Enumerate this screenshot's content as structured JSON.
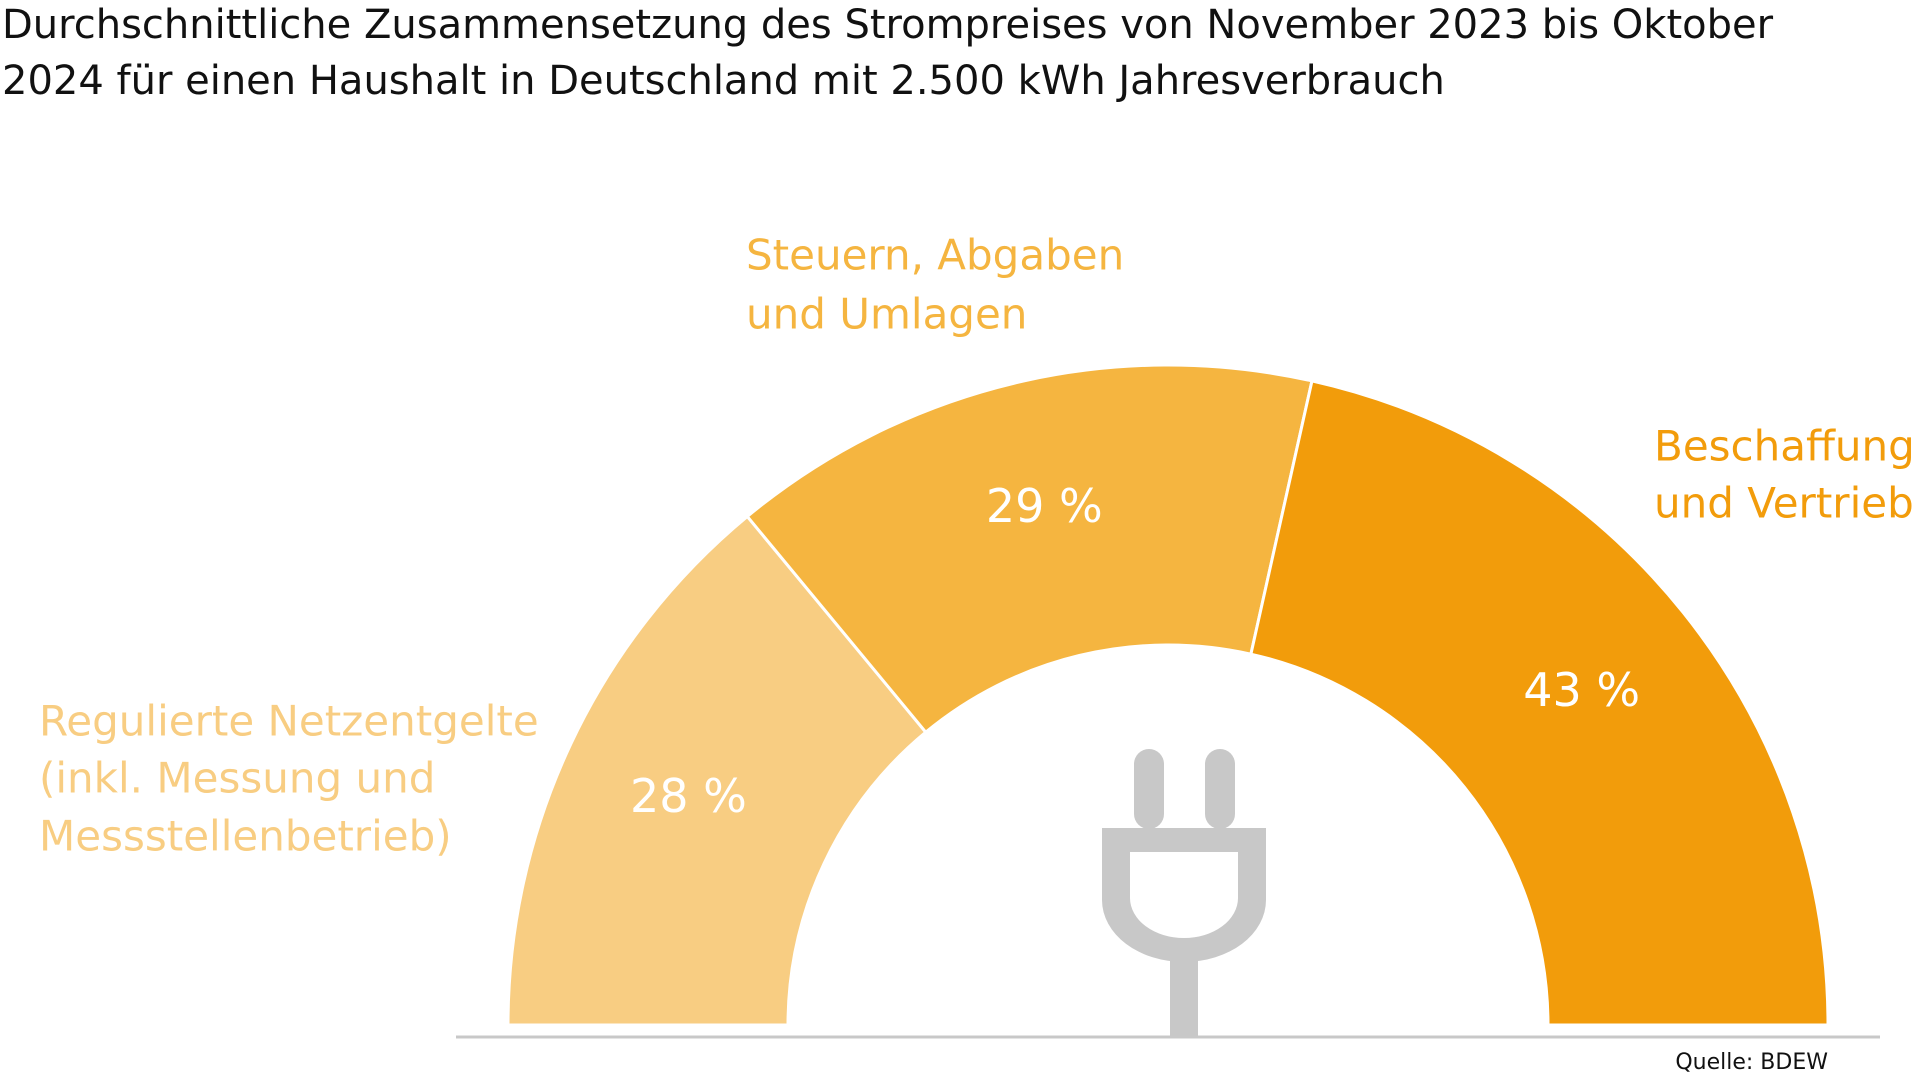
{
  "chart_data": {
    "type": "half-donut",
    "title": [
      "Durchschnittliche Zusammensetzung des Strompreises von November 2023 bis Oktober",
      "2024 für einen Haushalt in Deutschland mit 2.500 kWh Jahresverbrauch"
    ],
    "categories": [
      [
        "Regulierte Netzentgelte",
        "(inkl. Messung und",
        "Messstellenbetrieb)"
      ],
      [
        "Steuern, Abgaben",
        "und Umlagen"
      ],
      [
        "Beschaffung",
        "und Vertrieb"
      ]
    ],
    "values": [
      28,
      29,
      43
    ],
    "value_labels": [
      "28 %",
      "29 %",
      "43 %"
    ],
    "colors": [
      "#f8cd82",
      "#f5b540",
      "#f29c0b"
    ],
    "source": "Quelle: BDEW"
  }
}
